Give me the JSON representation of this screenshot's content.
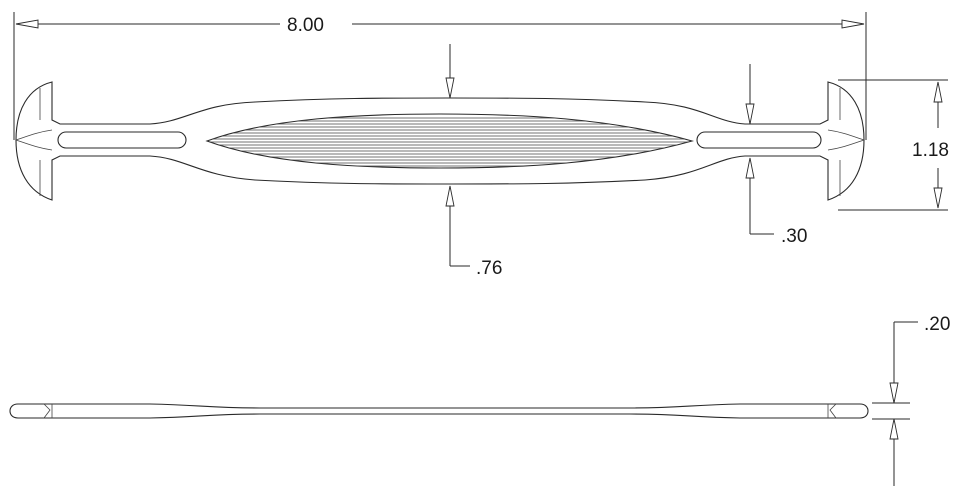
{
  "dimensions": {
    "overall_length": "8.00",
    "head_height": "1.18",
    "neck_width": ".30",
    "grip_width": ".76",
    "thickness": ".20"
  },
  "colors": {
    "line": "#2a2a2a",
    "background": "#ffffff"
  }
}
